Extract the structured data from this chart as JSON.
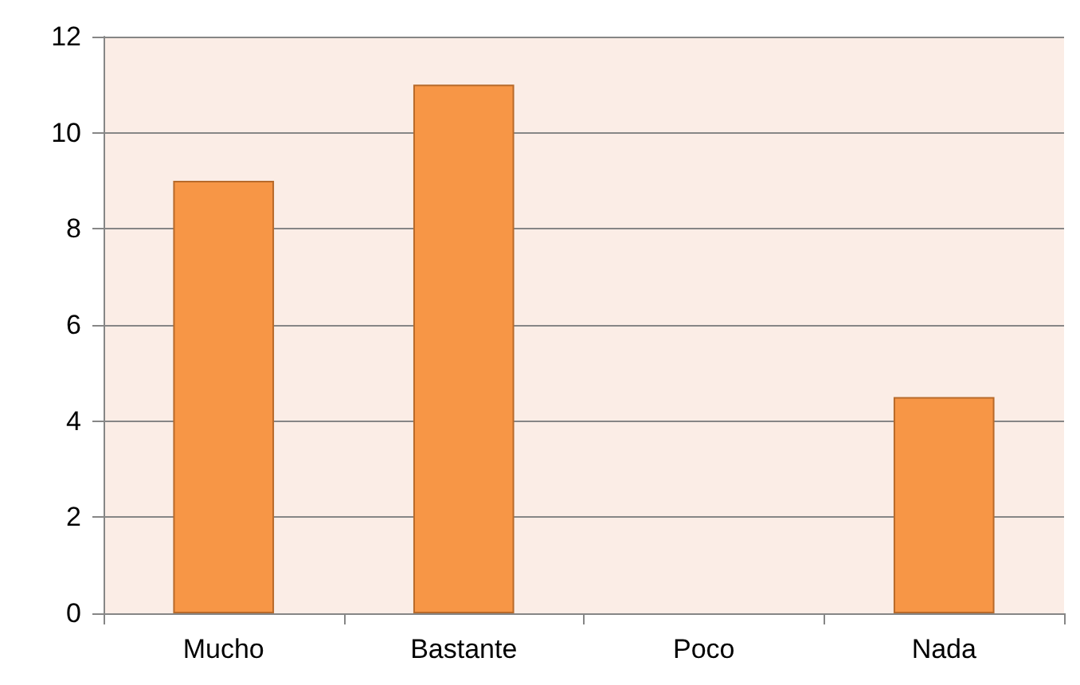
{
  "chart_data": {
    "type": "bar",
    "categories": [
      "Mucho",
      "Bastante",
      "Poco",
      "Nada"
    ],
    "values": [
      9,
      11,
      0,
      4.5
    ],
    "color": "#f79646",
    "ylim": [
      0,
      12
    ],
    "yticks": [
      0,
      2,
      4,
      6,
      8,
      10,
      12
    ],
    "grid": "y"
  }
}
